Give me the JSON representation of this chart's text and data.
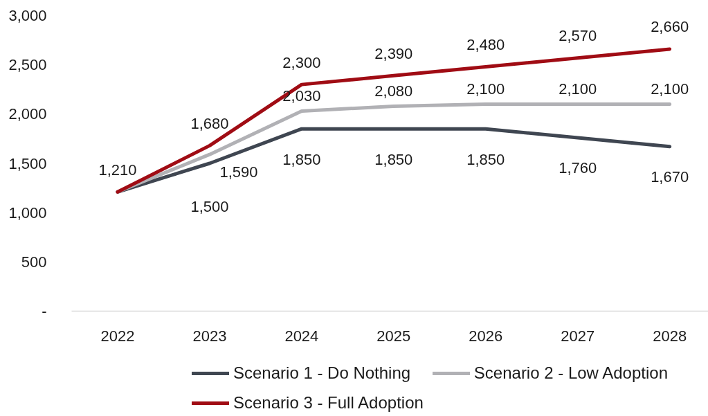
{
  "chart_data": {
    "type": "line",
    "categories": [
      "2022",
      "2023",
      "2024",
      "2025",
      "2026",
      "2027",
      "2028"
    ],
    "ylim": [
      0,
      3000
    ],
    "yticks": [
      {
        "value": 0,
        "label": "-"
      },
      500,
      {
        "value": 1000,
        "label": "1,000"
      },
      {
        "value": 1500,
        "label": "1,500"
      },
      {
        "value": 2000,
        "label": "2,000"
      },
      {
        "value": 2500,
        "label": "2,500"
      },
      {
        "value": 3000,
        "label": "3,000"
      }
    ],
    "grid": false,
    "legend": "bottom",
    "series": [
      {
        "name": "Scenario 1 - Do Nothing",
        "color": "#3f4651",
        "values": [
          1210,
          1500,
          1850,
          1850,
          1850,
          1760,
          1670
        ],
        "value_labels": [
          "1,210",
          "1,500",
          "1,850",
          "1,850",
          "1,850",
          "1,760",
          "1,670"
        ]
      },
      {
        "name": "Scenario 2 - Low Adoption",
        "color": "#b1b1b5",
        "values": [
          1210,
          1590,
          2030,
          2080,
          2100,
          2100,
          2100
        ],
        "value_labels": [
          null,
          "1,590",
          "2,030",
          "2,080",
          "2,100",
          "2,100",
          "2,100"
        ]
      },
      {
        "name": "Scenario 3 - Full Adoption",
        "color": "#a00c14",
        "values": [
          1210,
          1680,
          2300,
          2390,
          2480,
          2570,
          2660
        ],
        "value_labels": [
          null,
          "1,680",
          "2,300",
          "2,390",
          "2,480",
          "2,570",
          "2,660"
        ]
      }
    ]
  }
}
